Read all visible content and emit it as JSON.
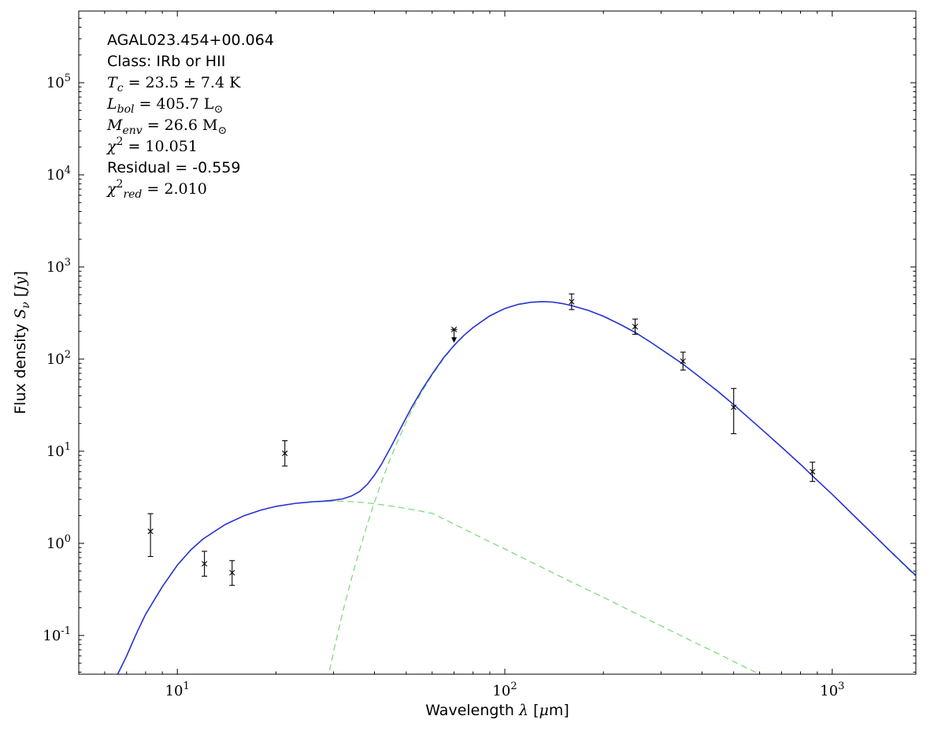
{
  "annotation": {
    "lines": [
      {
        "text": "AGAL023.454+00.064",
        "segments": [
          {
            "t": "AGAL023.454+00.064",
            "s": "sans"
          }
        ]
      },
      {
        "text": "Class: IRb or HII",
        "segments": [
          {
            "t": "Class: IRb or HII",
            "s": "sans"
          }
        ]
      },
      {
        "text": "Tc = 23.5 ± 7.4 K",
        "segments": [
          {
            "t": "T",
            "s": "mathit"
          },
          {
            "t": "c",
            "s": "sub"
          },
          {
            "t": " = 23.5 ± 7.4 K",
            "s": "math"
          }
        ]
      },
      {
        "text": "Lbol = 405.7 L⊙",
        "segments": [
          {
            "t": "L",
            "s": "mathit"
          },
          {
            "t": "bol",
            "s": "sub"
          },
          {
            "t": " = 405.7 L",
            "s": "math"
          },
          {
            "t": "⊙",
            "s": "sub"
          }
        ]
      },
      {
        "text": "Menv = 26.6 M⊙",
        "segments": [
          {
            "t": "M",
            "s": "mathit"
          },
          {
            "t": "env",
            "s": "sub"
          },
          {
            "t": " = 26.6 M",
            "s": "math"
          },
          {
            "t": "⊙",
            "s": "sub"
          }
        ]
      },
      {
        "text": "χ2 = 10.051",
        "segments": [
          {
            "t": "χ",
            "s": "mathit"
          },
          {
            "t": "2",
            "s": "sup"
          },
          {
            "t": " = 10.051",
            "s": "math"
          }
        ]
      },
      {
        "text": "Residual = -0.559",
        "segments": [
          {
            "t": "Residual = -0.559",
            "s": "sans"
          }
        ]
      },
      {
        "text": "χ2red = 2.010",
        "segments": [
          {
            "t": "χ",
            "s": "mathit"
          },
          {
            "t": "2",
            "s": "sup"
          },
          {
            "t": "red",
            "s": "sub"
          },
          {
            "t": " = 2.010",
            "s": "math"
          }
        ]
      }
    ]
  },
  "chart_data": {
    "type": "line",
    "title": "",
    "source_name": "AGAL023.454+00.064",
    "xlabel_text": "Wavelength λ [μm]",
    "ylabel_text": "Flux density Sν [Jy]",
    "xlabel_segments": [
      {
        "t": "Wavelength ",
        "s": "sans"
      },
      {
        "t": "λ",
        "s": "mathit"
      },
      {
        "t": " [",
        "s": "sans"
      },
      {
        "t": "μ",
        "s": "mathit"
      },
      {
        "t": "m]",
        "s": "sans"
      }
    ],
    "ylabel_segments": [
      {
        "t": "Flux density ",
        "s": "sans"
      },
      {
        "t": "S",
        "s": "mathit"
      },
      {
        "t": "ν",
        "s": "sub"
      },
      {
        "t": " [",
        "s": "sans"
      },
      {
        "t": "Jy",
        "s": "mathit"
      },
      {
        "t": "]",
        "s": "sans"
      }
    ],
    "xscale": "log",
    "yscale": "log",
    "xlim": [
      5,
      1800
    ],
    "ylim": [
      0.038,
      600000
    ],
    "x_major_tick_exponents": [
      1,
      2,
      3
    ],
    "y_major_tick_exponents": [
      -1,
      0,
      1,
      2,
      3,
      4,
      5
    ],
    "grid": false,
    "legend": null,
    "colors": {
      "model_total": "#2733d2",
      "components": "#80da80",
      "data": "#000000",
      "frame": "#000000"
    },
    "series": [
      {
        "name": "total-model-curve",
        "style": "solid",
        "color_key": "model_total",
        "points": [
          [
            6.5,
            0.035
          ],
          [
            7,
            0.06
          ],
          [
            7.5,
            0.105
          ],
          [
            8,
            0.17
          ],
          [
            9,
            0.34
          ],
          [
            10,
            0.58
          ],
          [
            11,
            0.85
          ],
          [
            12,
            1.12
          ],
          [
            14,
            1.6
          ],
          [
            16,
            2.0
          ],
          [
            18,
            2.3
          ],
          [
            20,
            2.52
          ],
          [
            23,
            2.72
          ],
          [
            26,
            2.83
          ],
          [
            28,
            2.87
          ],
          [
            30,
            2.94
          ],
          [
            32,
            3.04
          ],
          [
            34,
            3.26
          ],
          [
            36,
            3.64
          ],
          [
            38,
            4.36
          ],
          [
            40,
            5.5
          ],
          [
            42,
            7.2
          ],
          [
            45,
            11.3
          ],
          [
            48,
            17.6
          ],
          [
            52,
            30.1
          ],
          [
            56,
            47.2
          ],
          [
            60,
            69
          ],
          [
            65,
            103
          ],
          [
            70,
            141
          ],
          [
            75,
            181
          ],
          [
            80,
            220
          ],
          [
            90,
            295
          ],
          [
            100,
            354
          ],
          [
            110,
            393
          ],
          [
            120,
            414
          ],
          [
            130,
            421
          ],
          [
            140,
            416
          ],
          [
            150,
            401
          ],
          [
            160,
            381
          ],
          [
            180,
            338
          ],
          [
            200,
            292
          ],
          [
            225,
            238
          ],
          [
            250,
            195
          ],
          [
            280,
            151
          ],
          [
            315,
            114
          ],
          [
            350,
            88
          ],
          [
            400,
            61
          ],
          [
            450,
            44
          ],
          [
            500,
            32
          ],
          [
            600,
            18.1
          ],
          [
            700,
            11.1
          ],
          [
            800,
            7.2
          ],
          [
            870,
            5.4
          ],
          [
            1000,
            3.4
          ],
          [
            1200,
            1.8
          ],
          [
            1500,
            0.83
          ],
          [
            1750,
            0.49
          ],
          [
            1800,
            0.45
          ]
        ]
      },
      {
        "name": "cold-component-curve",
        "style": "dashed",
        "color_key": "components",
        "points": [
          [
            26,
            0.0056
          ],
          [
            28,
            0.021
          ],
          [
            30,
            0.067
          ],
          [
            32,
            0.18
          ],
          [
            34,
            0.41
          ],
          [
            36,
            0.84
          ],
          [
            38,
            1.6
          ],
          [
            40,
            2.8
          ],
          [
            42,
            4.6
          ],
          [
            45,
            8.8
          ],
          [
            48,
            15.1
          ],
          [
            52,
            27.8
          ],
          [
            56,
            45
          ],
          [
            60,
            67
          ],
          [
            65,
            101
          ],
          [
            70,
            139
          ],
          [
            75,
            180
          ],
          [
            80,
            219
          ],
          [
            90,
            294
          ],
          [
            100,
            353
          ],
          [
            110,
            392
          ],
          [
            120,
            413
          ],
          [
            130,
            420
          ],
          [
            140,
            415
          ],
          [
            150,
            401
          ],
          [
            160,
            381
          ],
          [
            180,
            338
          ],
          [
            200,
            292
          ],
          [
            225,
            238
          ],
          [
            250,
            195
          ],
          [
            280,
            151
          ],
          [
            315,
            114
          ],
          [
            350,
            88
          ],
          [
            400,
            61
          ],
          [
            450,
            43.6
          ],
          [
            500,
            32
          ],
          [
            600,
            18.1
          ],
          [
            700,
            11.1
          ],
          [
            800,
            7.2
          ],
          [
            870,
            5.4
          ],
          [
            1000,
            3.4
          ],
          [
            1200,
            1.8
          ],
          [
            1500,
            0.82
          ],
          [
            1750,
            0.48
          ],
          [
            1800,
            0.44
          ]
        ]
      },
      {
        "name": "warm-component-curve",
        "style": "dashed",
        "color_key": "components",
        "points": [
          [
            6.5,
            0.035
          ],
          [
            7,
            0.06
          ],
          [
            7.5,
            0.105
          ],
          [
            8,
            0.17
          ],
          [
            9,
            0.34
          ],
          [
            10,
            0.58
          ],
          [
            11,
            0.85
          ],
          [
            12,
            1.12
          ],
          [
            14,
            1.6
          ],
          [
            16,
            2.0
          ],
          [
            18,
            2.3
          ],
          [
            20,
            2.52
          ],
          [
            23,
            2.72
          ],
          [
            26,
            2.82
          ],
          [
            30,
            2.87
          ],
          [
            33,
            2.85
          ],
          [
            36,
            2.8
          ],
          [
            39,
            2.72
          ],
          [
            42,
            2.63
          ],
          [
            45,
            2.54
          ],
          [
            48,
            2.45
          ],
          [
            52,
            2.33
          ],
          [
            56,
            2.22
          ],
          [
            60,
            2.12
          ],
          [
            70,
            1.62
          ],
          [
            80,
            1.28
          ],
          [
            90,
            1.04
          ],
          [
            100,
            0.87
          ],
          [
            120,
            0.63
          ],
          [
            140,
            0.48
          ],
          [
            160,
            0.38
          ],
          [
            200,
            0.26
          ],
          [
            250,
            0.175
          ],
          [
            300,
            0.127
          ],
          [
            350,
            0.097
          ],
          [
            400,
            0.077
          ],
          [
            450,
            0.063
          ],
          [
            500,
            0.052
          ],
          [
            600,
            0.038
          ],
          [
            700,
            0.029
          ],
          [
            800,
            0.023
          ],
          [
            1000,
            0.015
          ]
        ]
      }
    ],
    "data_points": [
      {
        "wavelength_um": 8.28,
        "flux_jy": 1.35,
        "flux_lo": 0.72,
        "flux_hi": 2.1,
        "upper_limit": false
      },
      {
        "wavelength_um": 12.1,
        "flux_jy": 0.6,
        "flux_lo": 0.44,
        "flux_hi": 0.82,
        "upper_limit": false
      },
      {
        "wavelength_um": 14.7,
        "flux_jy": 0.48,
        "flux_lo": 0.35,
        "flux_hi": 0.65,
        "upper_limit": false
      },
      {
        "wavelength_um": 21.3,
        "flux_jy": 9.5,
        "flux_lo": 6.9,
        "flux_hi": 13.0,
        "upper_limit": false
      },
      {
        "wavelength_um": 70,
        "flux_jy": 210,
        "flux_lo": null,
        "flux_hi": null,
        "upper_limit": true
      },
      {
        "wavelength_um": 160,
        "flux_jy": 420,
        "flux_lo": 345,
        "flux_hi": 510,
        "upper_limit": false
      },
      {
        "wavelength_um": 250,
        "flux_jy": 225,
        "flux_lo": 186,
        "flux_hi": 272,
        "upper_limit": false
      },
      {
        "wavelength_um": 350,
        "flux_jy": 95,
        "flux_lo": 76,
        "flux_hi": 119,
        "upper_limit": false
      },
      {
        "wavelength_um": 500,
        "flux_jy": 30,
        "flux_lo": 15.5,
        "flux_hi": 48,
        "upper_limit": false
      },
      {
        "wavelength_um": 870,
        "flux_jy": 6.0,
        "flux_lo": 4.7,
        "flux_hi": 7.6,
        "upper_limit": false
      }
    ]
  }
}
